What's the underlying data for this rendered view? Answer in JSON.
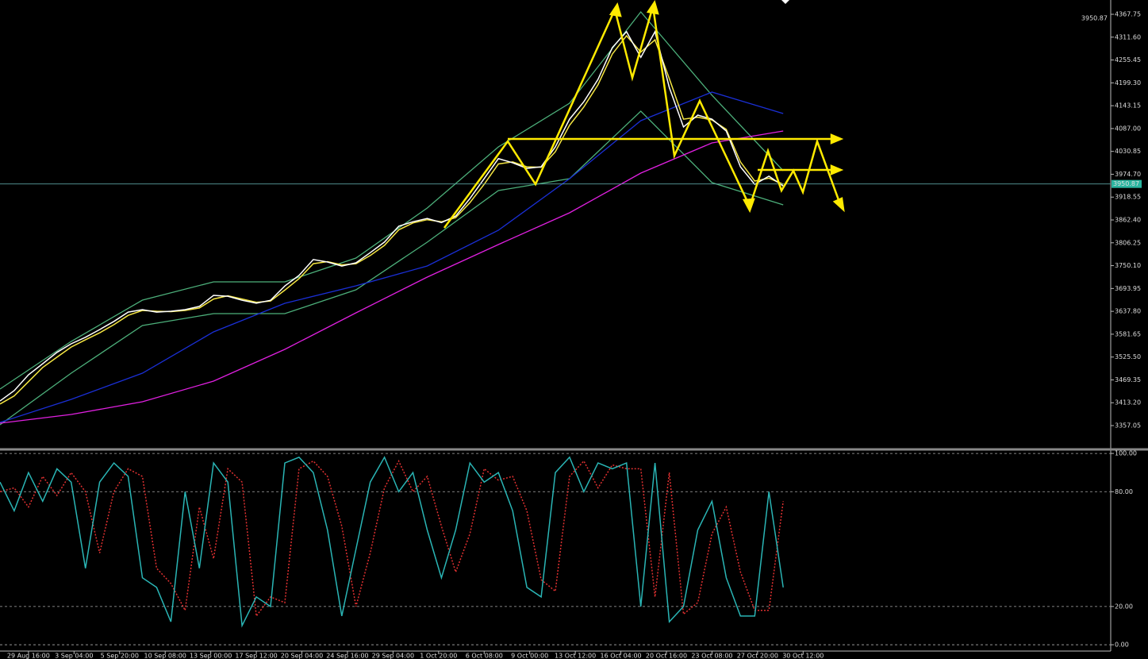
{
  "chart_data": [
    {
      "type": "line",
      "current_price": 3950.87,
      "xlim": [
        0,
        390
      ],
      "ylim": [
        3300.5,
        4402.9
      ],
      "yticks": [
        {
          "value": 4367.75,
          "label": "4367.75"
        },
        {
          "value": 4311.6,
          "label": "4311.60"
        },
        {
          "value": 4255.45,
          "label": "4255.45"
        },
        {
          "value": 4199.3,
          "label": "4199.30"
        },
        {
          "value": 4143.15,
          "label": "4143.15"
        },
        {
          "value": 4087,
          "label": "4087.00"
        },
        {
          "value": 4030.85,
          "label": "4030.85"
        },
        {
          "value": 3974.7,
          "label": "3974.70"
        },
        {
          "value": 3918.55,
          "label": "3918.55"
        },
        {
          "value": 3862.4,
          "label": "3862.40"
        },
        {
          "value": 3806.25,
          "label": "3806.25"
        },
        {
          "value": 3750.1,
          "label": "3750.10"
        },
        {
          "value": 3693.95,
          "label": "3693.95"
        },
        {
          "value": 3637.8,
          "label": "3637.80"
        },
        {
          "value": 3581.65,
          "label": "3581.65"
        },
        {
          "value": 3525.5,
          "label": "3525.50"
        },
        {
          "value": 3469.35,
          "label": "3469.35"
        },
        {
          "value": 3413.2,
          "label": "3413.20"
        },
        {
          "value": 3357.05,
          "label": "3357.05"
        }
      ],
      "series": [
        {
          "color": "#4caf7a",
          "x": [
            0,
            25,
            50,
            75,
            100,
            125,
            150,
            175,
            200,
            225,
            250,
            275
          ],
          "values": [
            3446.9,
            3564,
            3665.4,
            3710.2,
            3710.2,
            3768.7,
            3891.7,
            4041.9,
            4149.2,
            4373.6,
            4168.7,
            3983.4
          ]
        },
        {
          "color": "#4caf7a",
          "x": [
            0,
            25,
            50,
            75,
            100,
            125,
            150,
            175,
            200,
            225,
            250,
            275
          ],
          "values": [
            3359,
            3485.9,
            3603,
            3632.2,
            3632.2,
            3690.7,
            3807.8,
            3934.6,
            3963.9,
            4129.7,
            3954.1,
            3899.5
          ]
        },
        {
          "color": "#1a2fd6",
          "x": [
            0,
            25,
            50,
            75,
            100,
            125,
            150,
            175,
            200,
            225,
            250,
            275
          ],
          "values": [
            3364.9,
            3421.5,
            3485.9,
            3587.3,
            3657.6,
            3700.5,
            3749.3,
            3837.1,
            3963.9,
            4106.3,
            4176.5,
            4123.9
          ]
        },
        {
          "color": "#e020e0",
          "x": [
            0,
            25,
            50,
            75,
            100,
            125,
            150,
            175,
            200,
            225,
            250,
            275
          ],
          "values": [
            3363,
            3384.4,
            3415.6,
            3466.4,
            3544.4,
            3634.2,
            3722,
            3802,
            3880,
            3977.5,
            4051.7,
            4081
          ]
        },
        {
          "color": "#f5e642",
          "x": [
            0,
            5,
            10,
            15,
            20,
            25,
            30,
            35,
            40,
            45,
            50,
            55,
            60,
            65,
            70,
            75,
            80,
            85,
            90,
            95,
            100,
            105,
            110,
            115,
            120,
            125,
            130,
            135,
            140,
            145,
            150,
            155,
            160,
            165,
            170,
            175,
            180,
            185,
            190,
            195,
            200,
            205,
            210,
            215,
            220,
            225,
            230,
            235,
            240,
            245,
            250,
            255,
            260,
            265,
            270,
            275
          ],
          "values": [
            3410,
            3430,
            3465,
            3500,
            3525,
            3550,
            3568,
            3585,
            3605,
            3628,
            3640,
            3638,
            3637,
            3640,
            3646,
            3668,
            3676,
            3668,
            3660,
            3663,
            3690,
            3718,
            3755,
            3760,
            3752,
            3755,
            3775,
            3800,
            3838,
            3855,
            3863,
            3858,
            3868,
            3905,
            3950,
            4000,
            4005,
            3993,
            3992,
            4030,
            4095,
            4140,
            4195,
            4270,
            4315,
            4275,
            4305,
            4210,
            4110,
            4115,
            4108,
            4085,
            4005,
            3958,
            3965,
            3950
          ]
        },
        {
          "color": "#ffffff",
          "x": [
            0,
            5,
            10,
            15,
            20,
            25,
            30,
            35,
            40,
            45,
            50,
            55,
            60,
            65,
            70,
            75,
            80,
            85,
            90,
            95,
            100,
            105,
            110,
            115,
            120,
            125,
            130,
            135,
            140,
            145,
            150,
            155,
            160,
            165,
            170,
            175,
            180,
            185,
            190,
            195,
            200,
            205,
            210,
            215,
            220,
            225,
            230,
            235,
            240,
            245,
            250,
            255,
            260,
            265,
            270,
            275
          ],
          "values": [
            3417.6,
            3443,
            3482,
            3509,
            3537,
            3558,
            3574,
            3593,
            3613,
            3636,
            3642,
            3636,
            3638,
            3642,
            3650,
            3677,
            3675,
            3665,
            3658,
            3665,
            3700,
            3726,
            3765,
            3759,
            3749,
            3757,
            3782,
            3808,
            3847,
            3858,
            3866,
            3856,
            3872,
            3915,
            3964,
            4013,
            4003,
            3989,
            3993,
            4042,
            4110,
            4153,
            4208,
            4286,
            4325,
            4262,
            4325,
            4188,
            4091,
            4120,
            4110,
            4081,
            3993,
            3950,
            3970,
            3946
          ]
        }
      ]
    },
    {
      "type": "line",
      "xlim": [
        0,
        390
      ],
      "ylim": [
        -3.3,
        101.7
      ],
      "yticks": [
        {
          "value": 0,
          "label": "0.00"
        },
        {
          "value": 20,
          "label": "20.00"
        },
        {
          "value": 80,
          "label": "80.00"
        },
        {
          "value": 100,
          "label": "100.00"
        }
      ],
      "xticks": [
        {
          "value": 10,
          "label": "29 Aug 16:00"
        },
        {
          "value": 26,
          "label": "3 Sep 04:00"
        },
        {
          "value": 42,
          "label": "5 Sep 20:00"
        },
        {
          "value": 58,
          "label": "10 Sep 08:00"
        },
        {
          "value": 74,
          "label": "13 Sep 00:00"
        },
        {
          "value": 90,
          "label": "17 Sep 12:00"
        },
        {
          "value": 106,
          "label": "20 Sep 04:00"
        },
        {
          "value": 122,
          "label": "24 Sep 16:00"
        },
        {
          "value": 138,
          "label": "29 Sep 04:00"
        },
        {
          "value": 154,
          "label": "1 Oct 20:00"
        },
        {
          "value": 170,
          "label": "6 Oct 08:00"
        },
        {
          "value": 186,
          "label": "9 Oct 00:00"
        },
        {
          "value": 202,
          "label": "13 Oct 12:00"
        },
        {
          "value": 218,
          "label": "16 Oct 04:00"
        },
        {
          "value": 234,
          "label": "20 Oct 16:00"
        },
        {
          "value": 250,
          "label": "23 Oct 08:00"
        },
        {
          "value": 266,
          "label": "27 Oct 20:00"
        },
        {
          "value": 282,
          "label": "30 Oct 12:00"
        }
      ],
      "series": [
        {
          "color": "#e03030",
          "style": "dashed",
          "x": [
            0,
            5,
            10,
            15,
            20,
            25,
            30,
            35,
            40,
            45,
            50,
            55,
            60,
            65,
            70,
            75,
            80,
            85,
            90,
            95,
            100,
            105,
            110,
            115,
            120,
            125,
            130,
            135,
            140,
            145,
            150,
            155,
            160,
            165,
            170,
            175,
            180,
            185,
            190,
            195,
            200,
            205,
            210,
            215,
            220,
            225,
            230,
            235,
            240,
            245,
            250,
            255,
            260,
            265,
            270,
            275
          ],
          "values": [
            80,
            82,
            72,
            88,
            78,
            90,
            80,
            48,
            80,
            92,
            88,
            40,
            32,
            18,
            72,
            45,
            92,
            85,
            15,
            25,
            22,
            92,
            96,
            88,
            62,
            20,
            48,
            82,
            96,
            80,
            88,
            62,
            38,
            58,
            92,
            86,
            88,
            70,
            34,
            28,
            88,
            96,
            82,
            94,
            92,
            92,
            25,
            90,
            16,
            22,
            58,
            72,
            38,
            18,
            18,
            75
          ]
        },
        {
          "color": "#2ab5b5",
          "x": [
            0,
            5,
            10,
            15,
            20,
            25,
            30,
            35,
            40,
            45,
            50,
            55,
            60,
            65,
            70,
            75,
            80,
            85,
            90,
            95,
            100,
            105,
            110,
            115,
            120,
            125,
            130,
            135,
            140,
            145,
            150,
            155,
            160,
            165,
            170,
            175,
            180,
            185,
            190,
            195,
            200,
            205,
            210,
            215,
            220,
            225,
            230,
            235,
            240,
            245,
            250,
            255,
            260,
            265,
            270,
            275
          ],
          "values": [
            85,
            70,
            90,
            75,
            92,
            85,
            40,
            85,
            95,
            88,
            35,
            30,
            12,
            80,
            40,
            95,
            85,
            10,
            25,
            20,
            95,
            98,
            90,
            60,
            15,
            50,
            85,
            98,
            80,
            90,
            60,
            35,
            60,
            95,
            85,
            90,
            70,
            30,
            25,
            90,
            98,
            80,
            95,
            92,
            95,
            20,
            95,
            12,
            20,
            60,
            75,
            35,
            15,
            15,
            80,
            30
          ]
        }
      ]
    }
  ]
}
